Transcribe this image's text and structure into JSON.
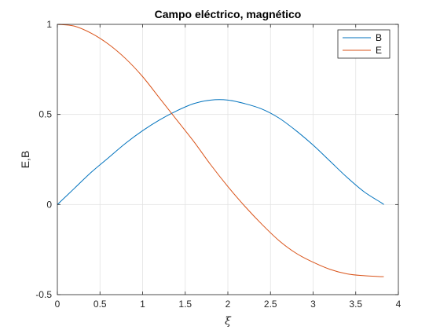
{
  "chart_data": {
    "type": "line",
    "title": "Campo eléctrico, magnético",
    "xlabel": "ξ",
    "ylabel": "E,B",
    "xlim": [
      0,
      4
    ],
    "ylim": [
      -0.5,
      1
    ],
    "xticks": [
      0,
      0.5,
      1,
      1.5,
      2,
      2.5,
      3,
      3.5,
      4
    ],
    "xtick_labels": [
      "0",
      "0.5",
      "1",
      "1.5",
      "2",
      "2.5",
      "3",
      "3.5",
      "4"
    ],
    "yticks": [
      -0.5,
      0,
      0.5,
      1
    ],
    "ytick_labels": [
      "-0.5",
      "0",
      "0.5",
      "1"
    ],
    "grid": true,
    "legend_position": "top-right",
    "x": [
      0,
      0.2,
      0.4,
      0.6,
      0.8,
      1.0,
      1.2,
      1.4,
      1.6,
      1.8,
      2.0,
      2.2,
      2.4,
      2.6,
      2.8,
      3.0,
      3.2,
      3.4,
      3.6,
      3.8,
      3.83
    ],
    "series": [
      {
        "name": "B",
        "color": "#0072BD",
        "values": [
          0,
          0.09,
          0.18,
          0.26,
          0.34,
          0.41,
          0.47,
          0.52,
          0.56,
          0.58,
          0.58,
          0.56,
          0.53,
          0.48,
          0.41,
          0.33,
          0.24,
          0.15,
          0.07,
          0.01,
          0
        ]
      },
      {
        "name": "E",
        "color": "#D95319",
        "values": [
          1,
          0.99,
          0.95,
          0.89,
          0.81,
          0.71,
          0.59,
          0.47,
          0.35,
          0.22,
          0.1,
          -0.01,
          -0.11,
          -0.2,
          -0.27,
          -0.32,
          -0.36,
          -0.385,
          -0.395,
          -0.4,
          -0.4
        ]
      }
    ]
  }
}
